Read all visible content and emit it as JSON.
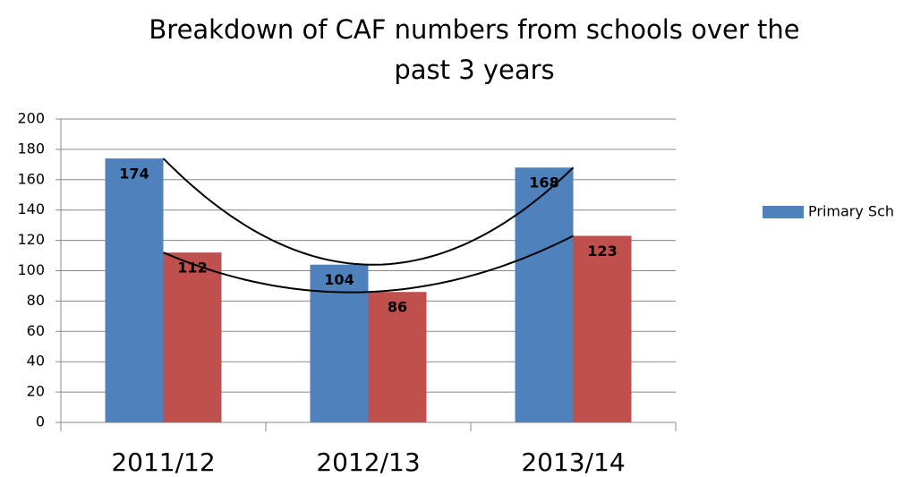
{
  "chart_data": {
    "type": "bar",
    "title": [
      "Breakdown of CAF numbers from schools over the",
      "past 3 years"
    ],
    "categories": [
      "2011/12",
      "2012/13",
      "2013/14"
    ],
    "series": [
      {
        "name": "Primary Sch",
        "color": "#4f81bd",
        "values": [
          174,
          104,
          168
        ]
      },
      {
        "color": "#c0504d",
        "values": [
          112,
          86,
          123
        ]
      }
    ],
    "ylim": [
      0,
      200
    ],
    "yticks": [
      0,
      20,
      40,
      60,
      80,
      100,
      120,
      140,
      160,
      180,
      200
    ],
    "grid": true,
    "trendline": "polynomial",
    "legend": "right"
  }
}
